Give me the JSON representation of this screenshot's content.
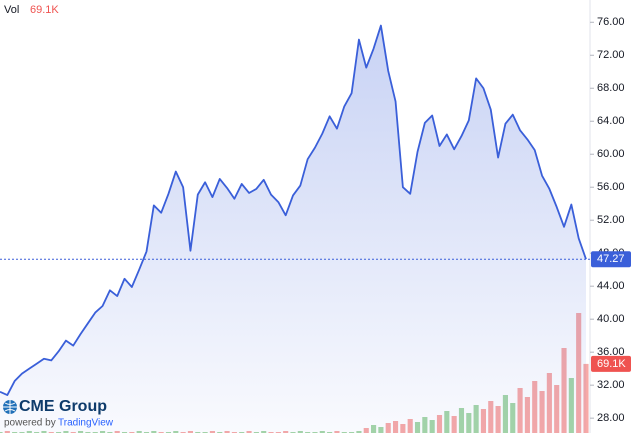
{
  "chart_data": {
    "type": "line",
    "color": "#3a5fd9",
    "values": [
      31.2,
      30.8,
      32.5,
      33.4,
      34.0,
      34.6,
      35.2,
      35.0,
      36.1,
      37.4,
      36.8,
      38.2,
      39.5,
      40.8,
      41.6,
      43.5,
      42.8,
      44.9,
      43.9,
      46.0,
      48.2,
      53.8,
      52.9,
      55.2,
      57.9,
      56.0,
      48.3,
      55.1,
      56.6,
      54.8,
      57.0,
      55.9,
      54.6,
      56.4,
      55.3,
      55.8,
      56.9,
      55.1,
      54.2,
      52.6,
      55.0,
      56.2,
      59.4,
      60.8,
      62.5,
      64.6,
      63.1,
      65.8,
      67.4,
      73.9,
      70.5,
      72.8,
      75.6,
      70.1,
      66.4,
      56.0,
      55.2,
      60.3,
      63.8,
      64.7,
      61.0,
      62.4,
      60.6,
      62.2,
      64.1,
      69.2,
      68.0,
      65.4,
      59.6,
      63.7,
      64.8,
      62.9,
      61.8,
      60.5,
      57.4,
      55.8,
      53.6,
      51.2,
      53.9,
      49.8,
      47.27
    ],
    "ylim": [
      26.2,
      78.7
    ],
    "yticks": [
      {
        "value": 28,
        "label": "28.00"
      },
      {
        "value": 32,
        "label": "32.00"
      },
      {
        "value": 36,
        "label": "36.00"
      },
      {
        "value": 40,
        "label": "40.00"
      },
      {
        "value": 44,
        "label": "44.00"
      },
      {
        "value": 48,
        "label": "48.00"
      },
      {
        "value": 52,
        "label": "52.00"
      },
      {
        "value": 56,
        "label": "56.00"
      },
      {
        "value": 60,
        "label": "60.00"
      },
      {
        "value": 64,
        "label": "64.00"
      },
      {
        "value": 68,
        "label": "68.00"
      },
      {
        "value": 72,
        "label": "72.00"
      },
      {
        "value": 76,
        "label": "76.00"
      }
    ],
    "volume_title": "Vol",
    "volume_label": "69.1K",
    "volume_values": [
      1,
      2,
      1,
      1,
      2,
      1,
      2,
      1,
      1,
      2,
      1,
      2,
      1,
      1,
      2,
      1,
      2,
      1,
      1,
      2,
      1,
      2,
      1,
      1,
      2,
      1,
      2,
      1,
      1,
      2,
      1,
      2,
      1,
      1,
      2,
      1,
      2,
      1,
      1,
      2,
      1,
      2,
      1,
      1,
      2,
      1,
      2,
      1,
      1,
      2,
      5,
      8,
      6,
      10,
      12,
      9,
      14,
      11,
      16,
      13,
      18,
      22,
      17,
      25,
      20,
      28,
      24,
      32,
      27,
      38,
      30,
      45,
      36,
      52,
      42,
      60,
      48,
      85,
      55,
      120,
      69.1
    ],
    "y2lim": [
      0,
      200
    ],
    "up_color": "#a5d6a7",
    "down_color": "#f7a9a7",
    "volume_badge_color": "#ef5350"
  },
  "branding": {
    "logo": "CME Group",
    "powered": "powered by",
    "platform": "TradingView"
  }
}
